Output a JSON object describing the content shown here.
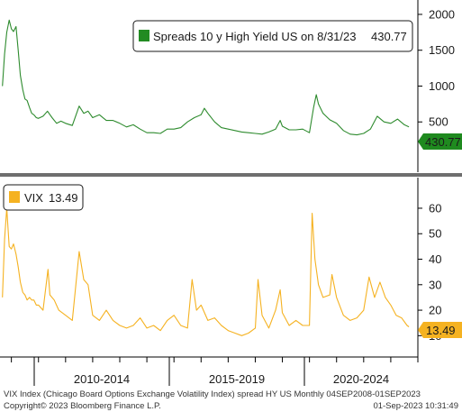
{
  "chart_data": [
    {
      "type": "line",
      "title": "",
      "legend": {
        "label": "Spreads 10 y High Yield US on 8/31/23",
        "value": "430.77",
        "placement": "top-right"
      },
      "last_value_badge": "430.77",
      "ylim": [
        0,
        2100
      ],
      "y_ticks": [
        "2000",
        "1500",
        "1000",
        "500"
      ],
      "colors": {
        "line": "#2e8b2e",
        "legend_swatch": "#228b22",
        "badge_bg": "#1f8a1f",
        "badge_text": "#ffffff"
      },
      "series": [
        {
          "name": "Spreads 10 y High Yield US",
          "x": [
            2008.67,
            2008.75,
            2008.83,
            2008.92,
            2009.0,
            2009.08,
            2009.17,
            2009.25,
            2009.33,
            2009.42,
            2009.5,
            2009.58,
            2009.67,
            2009.75,
            2009.83,
            2009.92,
            2010.0,
            2010.17,
            2010.33,
            2010.5,
            2010.67,
            2010.83,
            2011.0,
            2011.25,
            2011.5,
            2011.67,
            2011.83,
            2012.0,
            2012.25,
            2012.5,
            2012.75,
            2013.0,
            2013.25,
            2013.5,
            2013.75,
            2014.0,
            2014.25,
            2014.5,
            2014.75,
            2015.0,
            2015.25,
            2015.5,
            2015.75,
            2016.0,
            2016.12,
            2016.25,
            2016.5,
            2016.75,
            2017.0,
            2017.25,
            2017.5,
            2017.75,
            2018.0,
            2018.25,
            2018.5,
            2018.75,
            2018.92,
            2019.0,
            2019.25,
            2019.5,
            2019.75,
            2020.0,
            2020.15,
            2020.25,
            2020.33,
            2020.5,
            2020.75,
            2021.0,
            2021.25,
            2021.5,
            2021.75,
            2022.0,
            2022.25,
            2022.5,
            2022.75,
            2023.0,
            2023.25,
            2023.5,
            2023.67
          ],
          "values": [
            1000,
            1450,
            1750,
            1920,
            1800,
            1760,
            1830,
            1500,
            1150,
            950,
            820,
            800,
            700,
            620,
            600,
            560,
            550,
            580,
            650,
            560,
            480,
            510,
            480,
            450,
            720,
            620,
            650,
            560,
            600,
            520,
            520,
            480,
            430,
            460,
            400,
            350,
            350,
            340,
            400,
            400,
            420,
            500,
            560,
            600,
            690,
            620,
            500,
            420,
            400,
            380,
            360,
            350,
            340,
            330,
            360,
            400,
            520,
            440,
            390,
            390,
            400,
            350,
            700,
            880,
            750,
            620,
            530,
            480,
            380,
            330,
            320,
            340,
            400,
            580,
            500,
            480,
            540,
            460,
            430.77
          ]
        }
      ]
    },
    {
      "type": "line",
      "title": "",
      "legend": {
        "label": "VIX",
        "value": "13.49",
        "placement": "top-left"
      },
      "last_value_badge": "13.49",
      "ylim": [
        8,
        66
      ],
      "y_ticks": [
        "60",
        "50",
        "40",
        "30",
        "20",
        "10"
      ],
      "colors": {
        "line": "#f5b221",
        "legend_swatch": "#f5b221",
        "badge_bg": "#f5b221",
        "badge_text": "#000000"
      },
      "series": [
        {
          "name": "VIX",
          "x": [
            2008.67,
            2008.75,
            2008.83,
            2008.92,
            2009.0,
            2009.08,
            2009.17,
            2009.25,
            2009.33,
            2009.42,
            2009.5,
            2009.58,
            2009.67,
            2009.75,
            2009.83,
            2009.92,
            2010.0,
            2010.17,
            2010.35,
            2010.42,
            2010.58,
            2010.75,
            2011.0,
            2011.25,
            2011.5,
            2011.67,
            2011.83,
            2012.0,
            2012.25,
            2012.5,
            2012.75,
            2013.0,
            2013.25,
            2013.5,
            2013.75,
            2014.0,
            2014.25,
            2014.5,
            2014.75,
            2015.0,
            2015.25,
            2015.5,
            2015.67,
            2015.83,
            2016.0,
            2016.25,
            2016.5,
            2016.75,
            2017.0,
            2017.25,
            2017.5,
            2017.75,
            2018.0,
            2018.1,
            2018.25,
            2018.5,
            2018.75,
            2018.92,
            2019.0,
            2019.25,
            2019.5,
            2019.75,
            2020.0,
            2020.1,
            2020.2,
            2020.33,
            2020.5,
            2020.75,
            2020.83,
            2021.0,
            2021.25,
            2021.5,
            2021.75,
            2022.0,
            2022.2,
            2022.4,
            2022.6,
            2022.8,
            2023.0,
            2023.2,
            2023.4,
            2023.6,
            2023.67
          ],
          "values": [
            25,
            48,
            60,
            45,
            44,
            46,
            42,
            37,
            31,
            27,
            26,
            24,
            25,
            24,
            24,
            22,
            22,
            20,
            36,
            26,
            24,
            20,
            18,
            16,
            43,
            32,
            30,
            18,
            16,
            20,
            16,
            14,
            13,
            14,
            17,
            13,
            14,
            12,
            16,
            18,
            14,
            13,
            32,
            20,
            22,
            16,
            17,
            14,
            12,
            11,
            10,
            11,
            13,
            32,
            18,
            13,
            20,
            28,
            19,
            14,
            16,
            14,
            14,
            58,
            40,
            30,
            25,
            26,
            34,
            25,
            18,
            16,
            17,
            20,
            33,
            25,
            31,
            25,
            22,
            18,
            17,
            14,
            13.49
          ]
        }
      ]
    }
  ],
  "x_axis": {
    "labels": [
      "2010-2014",
      "2015-2019",
      "2020-2024"
    ],
    "range": [
      2008.58,
      2024.0
    ]
  },
  "footer": {
    "description": "VIX Index (Chicago Board Options Exchange Volatility Index) spread HY US  Monthly 04SEP2008-01SEP2023",
    "copyright": "Copyright© 2023 Bloomberg Finance L.P.",
    "timestamp": "01-Sep-2023 10:31:49"
  }
}
